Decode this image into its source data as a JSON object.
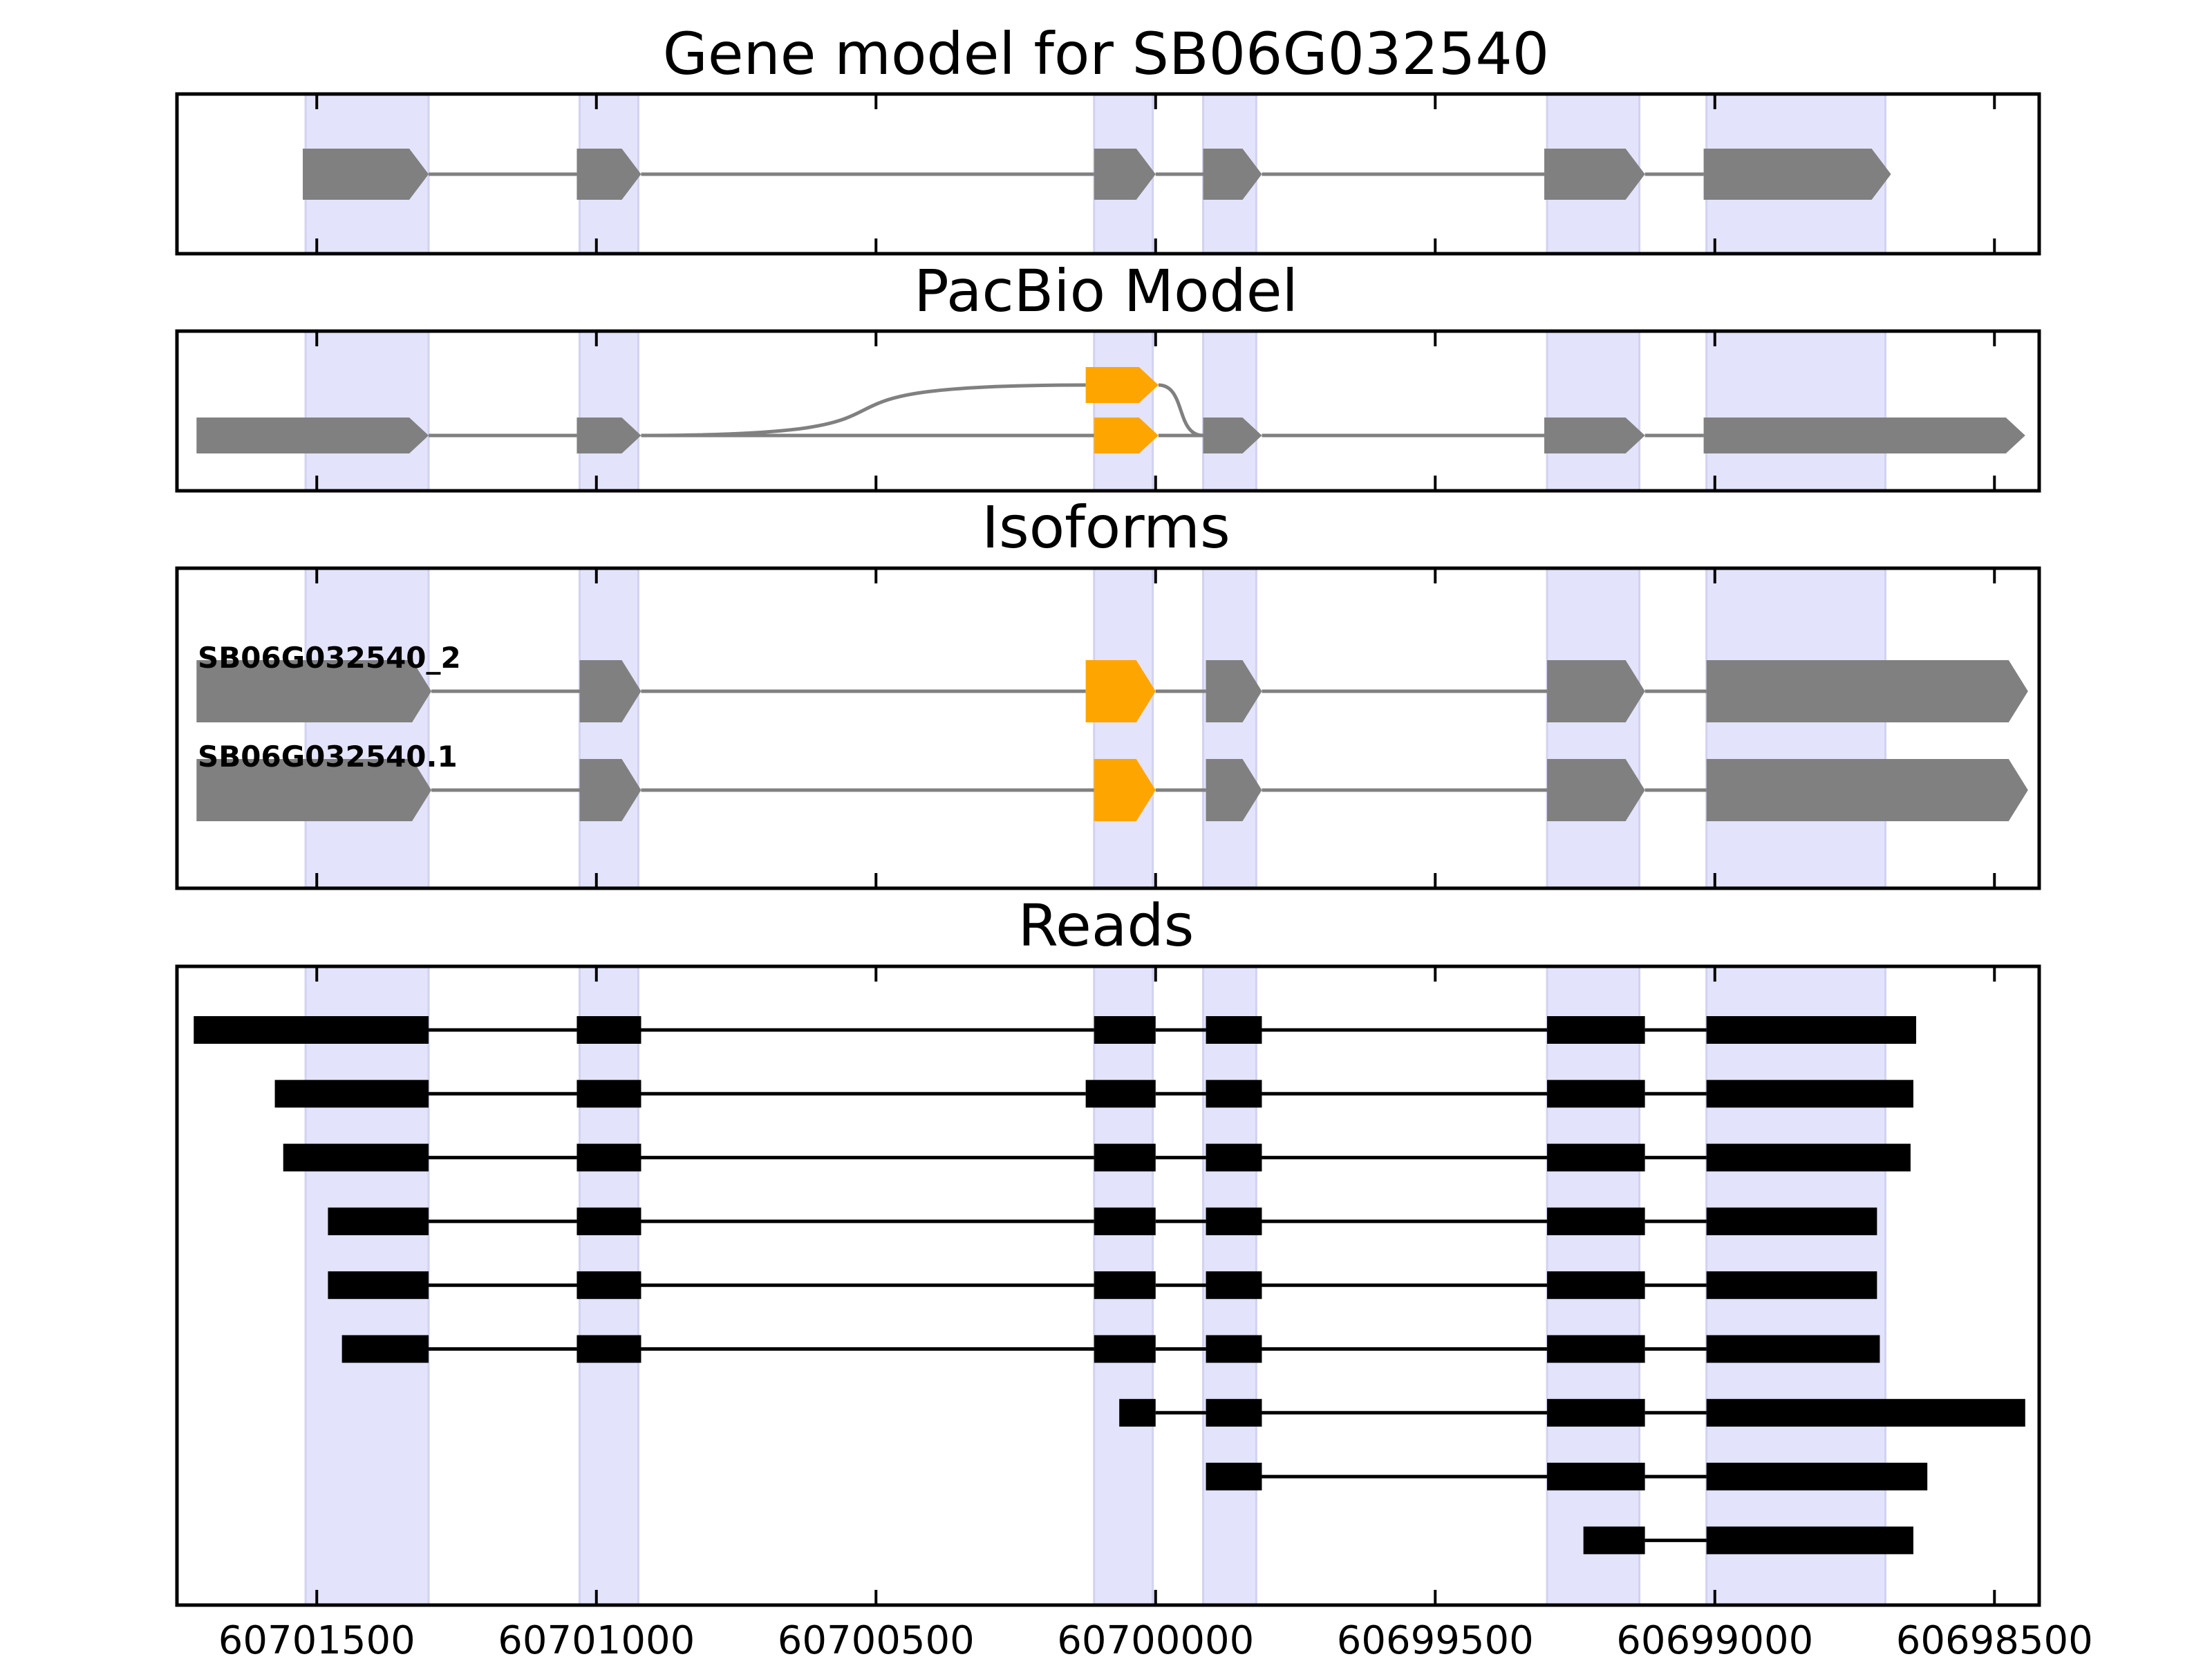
{
  "colors": {
    "exon": "#808080",
    "highlight_exon": "#FFA500",
    "read": "#000000",
    "shade": "#E3E3FC",
    "intron_gray": "#808080",
    "frame": "#000000"
  },
  "chart_data": {
    "type": "gene-model",
    "x_axis": {
      "range": [
        60701750,
        60698420
      ],
      "ticks": [
        60701500,
        60701000,
        60700500,
        60700000,
        60699500,
        60699000,
        60698500
      ],
      "tick_labels": [
        "60701500",
        "60701000",
        "60700500",
        "60700000",
        "60699500",
        "60699000",
        "60698500"
      ]
    },
    "shaded_exons": [
      [
        60701520,
        60701300
      ],
      [
        60701030,
        60700925
      ],
      [
        60700110,
        60700005
      ],
      [
        60699915,
        60699820
      ],
      [
        60699300,
        60699135
      ],
      [
        60699015,
        60698695
      ]
    ],
    "panels": [
      {
        "title": "Gene model for SB06G032540",
        "rows": [
          {
            "label": "",
            "exons": [
              {
                "start": 60701525,
                "end": 60701300,
                "arrow": true
              },
              {
                "start": 60701035,
                "end": 60700920,
                "arrow": true
              },
              {
                "start": 60700110,
                "end": 60700000,
                "arrow": true
              },
              {
                "start": 60699915,
                "end": 60699810,
                "arrow": true
              },
              {
                "start": 60699305,
                "end": 60699125,
                "arrow": true
              },
              {
                "start": 60699020,
                "end": 60698685,
                "arrow": true
              }
            ]
          }
        ]
      },
      {
        "title": "PacBio Model",
        "rows": [
          {
            "label": "",
            "exons": [
              {
                "start": 60701715,
                "end": 60701300,
                "arrow": true
              },
              {
                "start": 60701035,
                "end": 60700920,
                "arrow": true
              },
              {
                "start": 60700110,
                "end": 60699995,
                "arrow": true,
                "highlight": true
              },
              {
                "start": 60699915,
                "end": 60699810,
                "arrow": true
              },
              {
                "start": 60699305,
                "end": 60699125,
                "arrow": true
              },
              {
                "start": 60699020,
                "end": 60698445,
                "arrow": true
              }
            ]
          },
          {
            "label": "",
            "upper": true,
            "exons": [
              {
                "start": 60700125,
                "end": 60699995,
                "arrow": true,
                "highlight": true
              }
            ]
          }
        ]
      },
      {
        "title": "Isoforms",
        "rows": [
          {
            "label": "SB06G032540_2",
            "exons": [
              {
                "start": 60701715,
                "end": 60701295,
                "arrow": true
              },
              {
                "start": 60701030,
                "end": 60700920,
                "arrow": true
              },
              {
                "start": 60700125,
                "end": 60700000,
                "arrow": true,
                "highlight": true
              },
              {
                "start": 60699910,
                "end": 60699810,
                "arrow": true
              },
              {
                "start": 60699300,
                "end": 60699125,
                "arrow": true
              },
              {
                "start": 60699015,
                "end": 60698440,
                "arrow": true
              }
            ]
          },
          {
            "label": "SB06G032540.1",
            "exons": [
              {
                "start": 60701715,
                "end": 60701295,
                "arrow": true
              },
              {
                "start": 60701030,
                "end": 60700920,
                "arrow": true
              },
              {
                "start": 60700110,
                "end": 60700000,
                "arrow": true,
                "highlight": true
              },
              {
                "start": 60699910,
                "end": 60699810,
                "arrow": true
              },
              {
                "start": 60699300,
                "end": 60699125,
                "arrow": true
              },
              {
                "start": 60699015,
                "end": 60698440,
                "arrow": true
              }
            ]
          }
        ]
      },
      {
        "title": "Reads",
        "reads": [
          [
            [
              60701720,
              60701300
            ],
            [
              60701035,
              60700920
            ],
            [
              60700110,
              60700000
            ],
            [
              60699910,
              60699810
            ],
            [
              60699300,
              60699125
            ],
            [
              60699015,
              60698640
            ]
          ],
          [
            [
              60701575,
              60701300
            ],
            [
              60701035,
              60700920
            ],
            [
              60700125,
              60700000
            ],
            [
              60699910,
              60699810
            ],
            [
              60699300,
              60699125
            ],
            [
              60699015,
              60698645
            ]
          ],
          [
            [
              60701560,
              60701300
            ],
            [
              60701035,
              60700920
            ],
            [
              60700110,
              60700000
            ],
            [
              60699910,
              60699810
            ],
            [
              60699300,
              60699125
            ],
            [
              60699015,
              60698650
            ]
          ],
          [
            [
              60701480,
              60701300
            ],
            [
              60701035,
              60700920
            ],
            [
              60700110,
              60700000
            ],
            [
              60699910,
              60699810
            ],
            [
              60699300,
              60699125
            ],
            [
              60699015,
              60698710
            ]
          ],
          [
            [
              60701480,
              60701300
            ],
            [
              60701035,
              60700920
            ],
            [
              60700110,
              60700000
            ],
            [
              60699910,
              60699810
            ],
            [
              60699300,
              60699125
            ],
            [
              60699015,
              60698710
            ]
          ],
          [
            [
              60701455,
              60701300
            ],
            [
              60701035,
              60700920
            ],
            [
              60700110,
              60700000
            ],
            [
              60699910,
              60699810
            ],
            [
              60699300,
              60699125
            ],
            [
              60699015,
              60698705
            ]
          ],
          [
            [
              60700065,
              60700000
            ],
            [
              60699910,
              60699810
            ],
            [
              60699300,
              60699125
            ],
            [
              60699015,
              60698445
            ]
          ],
          [
            [
              60699910,
              60699810
            ],
            [
              60699300,
              60699125
            ],
            [
              60699015,
              60698620
            ]
          ],
          [
            [
              60699235,
              60699125
            ],
            [
              60699015,
              60698645
            ]
          ]
        ]
      }
    ]
  }
}
